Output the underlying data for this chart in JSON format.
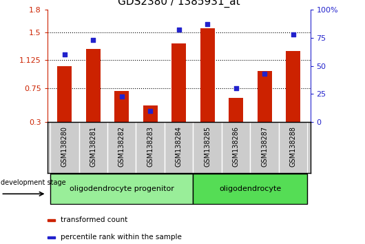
{
  "title": "GDS2380 / 1385931_at",
  "samples": [
    "GSM138280",
    "GSM138281",
    "GSM138282",
    "GSM138283",
    "GSM138284",
    "GSM138285",
    "GSM138286",
    "GSM138287",
    "GSM138288"
  ],
  "red_values": [
    1.05,
    1.28,
    0.71,
    0.52,
    1.35,
    1.55,
    0.62,
    0.98,
    1.25
  ],
  "blue_values": [
    60,
    73,
    23,
    10,
    82,
    87,
    30,
    43,
    78
  ],
  "left_ylim": [
    0.3,
    1.8
  ],
  "left_yticks": [
    0.3,
    0.75,
    1.125,
    1.5,
    1.8
  ],
  "right_ylim": [
    0,
    100
  ],
  "right_yticks": [
    0,
    25,
    50,
    75,
    100
  ],
  "right_yticklabels": [
    "0",
    "25",
    "50",
    "75",
    "100%"
  ],
  "red_color": "#cc2200",
  "blue_color": "#2222cc",
  "bar_width": 0.5,
  "groups": [
    {
      "label": "oligodendrocyte progenitor",
      "indices": [
        0,
        1,
        2,
        3,
        4
      ],
      "color": "#99ee99"
    },
    {
      "label": "oligodendrocyte",
      "indices": [
        5,
        6,
        7,
        8
      ],
      "color": "#55dd55"
    }
  ],
  "dev_stage_label": "development stage",
  "legend_red": "transformed count",
  "legend_blue": "percentile rank within the sample",
  "title_fontsize": 11,
  "tick_fontsize": 8,
  "gray_cell_color": "#cccccc"
}
